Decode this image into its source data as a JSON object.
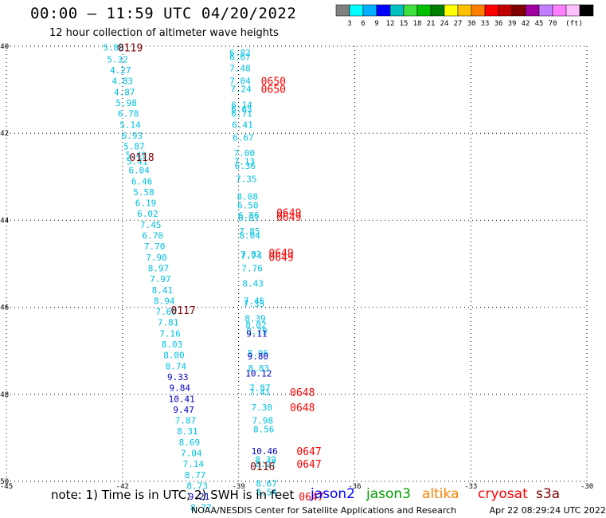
{
  "header": {
    "title": "00:00 – 11:59 UTC 04/20/2022",
    "subtitle": "12 hour collection of altimeter wave heights"
  },
  "colorbar": {
    "colors": [
      "#808080",
      "#00ffff",
      "#00b0ff",
      "#0000ff",
      "#00c0c0",
      "#40e040",
      "#00c000",
      "#008000",
      "#ffff00",
      "#ffc000",
      "#ff8000",
      "#ff0000",
      "#c00000",
      "#800000",
      "#a000a0",
      "#c080ff",
      "#ff80ff",
      "#ffc0ff",
      "#000000"
    ],
    "labels": [
      "3",
      "6",
      "9",
      "12",
      "15",
      "18",
      "21",
      "24",
      "27",
      "30",
      "33",
      "36",
      "39",
      "42",
      "45",
      "70"
    ],
    "unit": "(ft)"
  },
  "chart_data": {
    "type": "scatter",
    "xlim": [
      -45,
      -30
    ],
    "ylim": [
      -50,
      -40
    ],
    "x_ticks": [
      -45,
      -42,
      -39,
      -36,
      -33,
      -30
    ],
    "y_ticks": [
      -40,
      -42,
      -44,
      -46,
      -48,
      -50
    ],
    "grid": true,
    "swh_points": [
      {
        "lon": -42.23,
        "lat": -40.03,
        "v": "5.88",
        "c": "#00c0e0"
      },
      {
        "lon": -42.13,
        "lat": -40.3,
        "v": "5.32",
        "c": "#00c0e0"
      },
      {
        "lon": -42.05,
        "lat": -40.55,
        "v": "4.27",
        "c": "#00c0e0"
      },
      {
        "lon": -42.0,
        "lat": -40.8,
        "v": "4.83",
        "c": "#00c0e0"
      },
      {
        "lon": -41.95,
        "lat": -41.05,
        "v": "4.87",
        "c": "#00c0e0"
      },
      {
        "lon": -41.9,
        "lat": -41.3,
        "v": "5.98",
        "c": "#00c0e0"
      },
      {
        "lon": -41.85,
        "lat": -41.55,
        "v": "6.78",
        "c": "#00c0e0"
      },
      {
        "lon": -41.8,
        "lat": -41.8,
        "v": "5.14",
        "c": "#00c0e0"
      },
      {
        "lon": -41.75,
        "lat": -42.05,
        "v": "6.93",
        "c": "#00c0e0"
      },
      {
        "lon": -41.7,
        "lat": -42.3,
        "v": "5.87",
        "c": "#00c0e0"
      },
      {
        "lon": -41.65,
        "lat": -42.5,
        "v": "5.49",
        "c": "#00c0e0"
      },
      {
        "lon": -41.62,
        "lat": -42.65,
        "v": "5.41",
        "c": "#00c0e0"
      },
      {
        "lon": -41.57,
        "lat": -42.85,
        "v": "6.04",
        "c": "#00c0e0"
      },
      {
        "lon": -41.5,
        "lat": -43.1,
        "v": "6.46",
        "c": "#00c0e0"
      },
      {
        "lon": -41.45,
        "lat": -43.35,
        "v": "5.58",
        "c": "#00c0e0"
      },
      {
        "lon": -41.4,
        "lat": -43.6,
        "v": "6.19",
        "c": "#00c0e0"
      },
      {
        "lon": -41.35,
        "lat": -43.85,
        "v": "6.02",
        "c": "#00c0e0"
      },
      {
        "lon": -41.27,
        "lat": -44.1,
        "v": "7.45",
        "c": "#00c0e0"
      },
      {
        "lon": -41.22,
        "lat": -44.35,
        "v": "6.70",
        "c": "#00c0e0"
      },
      {
        "lon": -41.17,
        "lat": -44.6,
        "v": "7.70",
        "c": "#00c0e0"
      },
      {
        "lon": -41.12,
        "lat": -44.85,
        "v": "7.90",
        "c": "#00c0e0"
      },
      {
        "lon": -41.07,
        "lat": -45.1,
        "v": "8.97",
        "c": "#00c0e0"
      },
      {
        "lon": -41.02,
        "lat": -45.35,
        "v": "7.97",
        "c": "#00c0e0"
      },
      {
        "lon": -40.97,
        "lat": -45.6,
        "v": "8.41",
        "c": "#00c0e0"
      },
      {
        "lon": -40.92,
        "lat": -45.85,
        "v": "8.94",
        "c": "#00c0e0"
      },
      {
        "lon": -40.87,
        "lat": -46.1,
        "v": "7.60",
        "c": "#00c0e0"
      },
      {
        "lon": -40.82,
        "lat": -46.35,
        "v": "7.81",
        "c": "#00c0e0"
      },
      {
        "lon": -40.77,
        "lat": -46.6,
        "v": "7.16",
        "c": "#00c0e0"
      },
      {
        "lon": -40.72,
        "lat": -46.85,
        "v": "8.03",
        "c": "#00c0e0"
      },
      {
        "lon": -40.67,
        "lat": -47.1,
        "v": "8.00",
        "c": "#00c0e0"
      },
      {
        "lon": -40.62,
        "lat": -47.35,
        "v": "8.74",
        "c": "#00c0e0"
      },
      {
        "lon": -40.57,
        "lat": -47.6,
        "v": "9.33",
        "c": "#0000c0"
      },
      {
        "lon": -40.52,
        "lat": -47.85,
        "v": "9.84",
        "c": "#0000c0"
      },
      {
        "lon": -40.47,
        "lat": -48.1,
        "v": "10.41",
        "c": "#0000c0"
      },
      {
        "lon": -40.42,
        "lat": -48.35,
        "v": "9.47",
        "c": "#0000c0"
      },
      {
        "lon": -40.37,
        "lat": -48.6,
        "v": "7.87",
        "c": "#00c0e0"
      },
      {
        "lon": -40.32,
        "lat": -48.85,
        "v": "8.31",
        "c": "#00c0e0"
      },
      {
        "lon": -40.27,
        "lat": -49.1,
        "v": "8.69",
        "c": "#00c0e0"
      },
      {
        "lon": -40.22,
        "lat": -49.35,
        "v": "7.04",
        "c": "#00c0e0"
      },
      {
        "lon": -40.17,
        "lat": -49.6,
        "v": "7.14",
        "c": "#00c0e0"
      },
      {
        "lon": -40.12,
        "lat": -49.85,
        "v": "8.77",
        "c": "#00c0e0"
      },
      {
        "lon": -40.07,
        "lat": -50.1,
        "v": "8.73",
        "c": "#00c0e0"
      },
      {
        "lon": -40.02,
        "lat": -50.35,
        "v": "9.21",
        "c": "#0000c0"
      },
      {
        "lon": -39.97,
        "lat": -50.6,
        "v": "8.77",
        "c": "#00c0e0"
      },
      {
        "lon": -38.96,
        "lat": -40.15,
        "v": "6.82",
        "c": "#00c0e0"
      },
      {
        "lon": -38.96,
        "lat": -40.25,
        "v": "6.67",
        "c": "#00c0e0"
      },
      {
        "lon": -38.96,
        "lat": -40.5,
        "v": "7.48",
        "c": "#00c0e0"
      },
      {
        "lon": -38.96,
        "lat": -40.8,
        "v": "7.04",
        "c": "#00c0e0"
      },
      {
        "lon": -38.94,
        "lat": -40.98,
        "v": "7.24",
        "c": "#00c0e0"
      },
      {
        "lon": -38.92,
        "lat": -41.35,
        "v": "6.14",
        "c": "#00c0e0"
      },
      {
        "lon": -38.92,
        "lat": -41.45,
        "v": "6.65",
        "c": "#00c0e0"
      },
      {
        "lon": -38.92,
        "lat": -41.55,
        "v": "6.71",
        "c": "#00c0e0"
      },
      {
        "lon": -38.9,
        "lat": -41.8,
        "v": "6.41",
        "c": "#00c0e0"
      },
      {
        "lon": -38.88,
        "lat": -42.1,
        "v": "6.67",
        "c": "#00c0e0"
      },
      {
        "lon": -38.85,
        "lat": -42.45,
        "v": "7.00",
        "c": "#00c0e0"
      },
      {
        "lon": -38.85,
        "lat": -42.65,
        "v": "7.13",
        "c": "#00c0e0"
      },
      {
        "lon": -38.83,
        "lat": -42.75,
        "v": "6.36",
        "c": "#00c0e0"
      },
      {
        "lon": -38.8,
        "lat": -43.05,
        "v": "7.35",
        "c": "#00c0e0"
      },
      {
        "lon": -38.77,
        "lat": -43.45,
        "v": "8.08",
        "c": "#00c0e0"
      },
      {
        "lon": -38.76,
        "lat": -43.65,
        "v": "6.50",
        "c": "#00c0e0"
      },
      {
        "lon": -38.74,
        "lat": -43.88,
        "v": "6.86",
        "c": "#00c0e0"
      },
      {
        "lon": -38.74,
        "lat": -43.95,
        "v": "6.87",
        "c": "#00c0e0"
      },
      {
        "lon": -38.72,
        "lat": -44.25,
        "v": "7.85",
        "c": "#00c0e0"
      },
      {
        "lon": -38.71,
        "lat": -44.35,
        "v": "8.04",
        "c": "#00c0e0"
      },
      {
        "lon": -38.68,
        "lat": -44.78,
        "v": "7.82",
        "c": "#00c0e0"
      },
      {
        "lon": -38.67,
        "lat": -44.82,
        "v": "7.74",
        "c": "#00c0e0"
      },
      {
        "lon": -38.65,
        "lat": -45.1,
        "v": "7.76",
        "c": "#00c0e0"
      },
      {
        "lon": -38.63,
        "lat": -45.45,
        "v": "8.43",
        "c": "#00c0e0"
      },
      {
        "lon": -38.6,
        "lat": -45.85,
        "v": "7.45",
        "c": "#00c0e0"
      },
      {
        "lon": -38.6,
        "lat": -45.92,
        "v": "7.35",
        "c": "#00c0e0"
      },
      {
        "lon": -38.57,
        "lat": -46.25,
        "v": "8.39",
        "c": "#00c0e0"
      },
      {
        "lon": -38.55,
        "lat": -46.4,
        "v": "8.02",
        "c": "#00c0e0"
      },
      {
        "lon": -38.53,
        "lat": -46.55,
        "v": "8.79",
        "c": "#00c0e0"
      },
      {
        "lon": -38.53,
        "lat": -46.6,
        "v": "9.11",
        "c": "#0000c0"
      },
      {
        "lon": -38.5,
        "lat": -47.05,
        "v": "8.96",
        "c": "#00c0e0"
      },
      {
        "lon": -38.5,
        "lat": -47.12,
        "v": "9.80",
        "c": "#0000c0"
      },
      {
        "lon": -38.48,
        "lat": -47.4,
        "v": "8.83",
        "c": "#00c0e0"
      },
      {
        "lon": -38.48,
        "lat": -47.52,
        "v": "10.12",
        "c": "#0000c0"
      },
      {
        "lon": -38.45,
        "lat": -47.85,
        "v": "7.87",
        "c": "#00c0e0"
      },
      {
        "lon": -38.45,
        "lat": -47.95,
        "v": "7.41",
        "c": "#00c0e0"
      },
      {
        "lon": -38.4,
        "lat": -48.3,
        "v": "7.30",
        "c": "#00c0e0"
      },
      {
        "lon": -38.38,
        "lat": -48.6,
        "v": "7.98",
        "c": "#00c0e0"
      },
      {
        "lon": -38.35,
        "lat": -48.8,
        "v": "8.56",
        "c": "#00c0e0"
      },
      {
        "lon": -38.33,
        "lat": -49.3,
        "v": "10.46",
        "c": "#0000c0"
      },
      {
        "lon": -38.3,
        "lat": -49.5,
        "v": "8.39",
        "c": "#00c0e0"
      },
      {
        "lon": -38.3,
        "lat": -49.6,
        "v": "8.27",
        "c": "#00c0e0"
      },
      {
        "lon": -38.28,
        "lat": -50.05,
        "v": "8.67",
        "c": "#00c0e0"
      },
      {
        "lon": -38.28,
        "lat": -50.25,
        "v": "8.54",
        "c": "#00c0e0"
      }
    ],
    "time_labels": [
      {
        "lon": -41.8,
        "lat": -40.03,
        "t": "0119",
        "c": "#800000"
      },
      {
        "lon": -41.5,
        "lat": -42.55,
        "t": "0118",
        "c": "#800000"
      },
      {
        "lon": -40.43,
        "lat": -46.06,
        "t": "0117",
        "c": "#800000"
      },
      {
        "lon": -38.38,
        "lat": -49.65,
        "t": "0116",
        "c": "#800000"
      },
      {
        "lon": -38.1,
        "lat": -40.8,
        "t": "0650",
        "c": "#ff0000"
      },
      {
        "lon": -38.1,
        "lat": -40.98,
        "t": "0650",
        "c": "#ff0000"
      },
      {
        "lon": -37.7,
        "lat": -43.82,
        "t": "0649",
        "c": "#ff0000"
      },
      {
        "lon": -37.7,
        "lat": -43.92,
        "t": "0649",
        "c": "#ff0000"
      },
      {
        "lon": -37.9,
        "lat": -44.74,
        "t": "0649",
        "c": "#ff0000"
      },
      {
        "lon": -37.9,
        "lat": -44.84,
        "t": "0649",
        "c": "#ff0000"
      },
      {
        "lon": -37.35,
        "lat": -47.95,
        "t": "0648",
        "c": "#ff0000"
      },
      {
        "lon": -37.35,
        "lat": -48.3,
        "t": "0648",
        "c": "#ff0000"
      },
      {
        "lon": -37.18,
        "lat": -49.3,
        "t": "0647",
        "c": "#ff0000"
      },
      {
        "lon": -37.18,
        "lat": -49.6,
        "t": "0647",
        "c": "#ff0000"
      },
      {
        "lon": -37.12,
        "lat": -50.35,
        "t": "0647",
        "c": "#ff0000"
      }
    ]
  },
  "note": "note: 1) Time is in UTC; 2) SWH is in feet",
  "satellites": [
    {
      "name": "jason2",
      "color": "#0000ff"
    },
    {
      "name": "jason3",
      "color": "#00a000"
    },
    {
      "name": "altika",
      "color": "#ff8000"
    },
    {
      "name": "cryosat",
      "color": "#ff0000"
    },
    {
      "name": "s3a",
      "color": "#800000"
    }
  ],
  "footer": {
    "center": "NOAA/NESDIS Center for Satellite Applications and Research",
    "timestamp": "Apr 22 08:29:24 UTC 2022"
  }
}
